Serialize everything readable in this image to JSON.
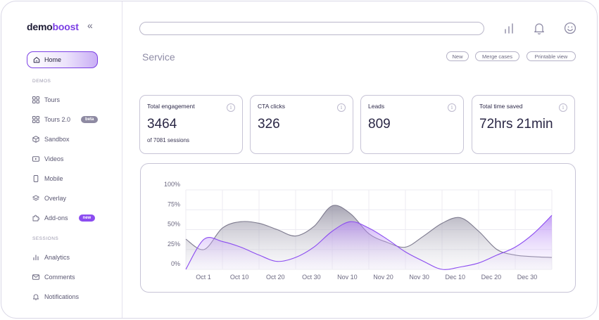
{
  "brand": {
    "part1": "demo",
    "part2": "boost"
  },
  "sidebar": {
    "collapse_icon": "«",
    "home_label": "Home",
    "demos_section": "DEMOS",
    "sessions_section": "SESSIONS",
    "items": [
      {
        "label": "Tours",
        "icon": "grid-icon"
      },
      {
        "label": "Tours 2.0",
        "icon": "grid-icon",
        "badge": "beta"
      },
      {
        "label": "Sandbox",
        "icon": "cube-icon"
      },
      {
        "label": "Videos",
        "icon": "video-icon"
      },
      {
        "label": "Mobile",
        "icon": "mobile-icon"
      },
      {
        "label": "Overlay",
        "icon": "layers-icon"
      },
      {
        "label": "Add-ons",
        "icon": "puzzle-icon",
        "badge": "new"
      },
      {
        "label": "Analytics",
        "icon": "bar-chart-icon"
      },
      {
        "label": "Comments",
        "icon": "mail-icon"
      },
      {
        "label": "Notifications",
        "icon": "bell-icon"
      }
    ]
  },
  "header": {
    "search_value": "",
    "page_title": "Service",
    "actions": [
      "New",
      "Merge cases",
      "Printable view"
    ]
  },
  "stats": [
    {
      "title": "Total engagement",
      "value": "3464",
      "sub": "of 7081 sessions"
    },
    {
      "title": "CTA clicks",
      "value": "326",
      "sub": ""
    },
    {
      "title": "Leads",
      "value": "809",
      "sub": ""
    },
    {
      "title": "Total time saved",
      "value": "72hrs 21min",
      "sub": ""
    }
  ],
  "colors": {
    "accent": "#7b3fe4",
    "gray_series": "#7d7a8e",
    "purple_series": "#8b4cf0"
  },
  "chart_data": {
    "type": "area",
    "title": "",
    "ylabel": "",
    "xlabel": "",
    "ylim": [
      0,
      100
    ],
    "y_ticks": [
      "100%",
      "75%",
      "50%",
      "25%",
      "0%"
    ],
    "x_ticks": [
      "Oct 1",
      "Oct 10",
      "Oct 20",
      "Oct 30",
      "Nov 10",
      "Nov 20",
      "Nov 30",
      "Dec 10",
      "Dec 20",
      "Dec 30"
    ],
    "x": [
      0,
      1,
      2,
      3,
      4,
      5,
      6,
      7,
      8,
      9,
      10,
      11,
      12,
      13,
      14,
      15,
      16,
      17,
      18,
      19,
      20
    ],
    "series": [
      {
        "name": "Gray",
        "values": [
          38,
          25,
          52,
          60,
          58,
          50,
          42,
          54,
          80,
          70,
          45,
          34,
          28,
          42,
          58,
          65,
          48,
          25,
          18,
          16,
          15
        ]
      },
      {
        "name": "Purple",
        "values": [
          0,
          38,
          35,
          28,
          18,
          10,
          15,
          28,
          48,
          60,
          52,
          38,
          22,
          10,
          0,
          3,
          8,
          18,
          28,
          45,
          68
        ]
      }
    ]
  }
}
